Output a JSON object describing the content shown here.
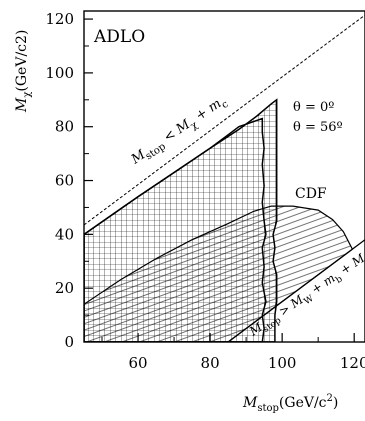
{
  "chart_data": {
    "type": "exclusion-plot",
    "title": "",
    "xlabel_main": "M",
    "xlabel_sub": "stop",
    "xlabel_unit": "(GeV/c",
    "xlabel_sup": "2",
    "xlabel_close": ")",
    "ylabel_main": "M",
    "ylabel_sub": "χ",
    "ylabel_unit": "(GeV/c2)",
    "xlim": [
      45,
      123
    ],
    "ylim": [
      0,
      123
    ],
    "xticks": [
      60,
      80,
      100,
      120
    ],
    "yticks": [
      0,
      20,
      40,
      60,
      80,
      100,
      120
    ],
    "grid": false,
    "experiment_label": "ADLO",
    "legend": {
      "placement": "top-right",
      "entries": [
        "θ = 0º",
        "θ = 56º"
      ]
    },
    "annotations": {
      "cdf": "CDF",
      "kin_upper": {
        "a": "M",
        "a_sub": "stop",
        "rel": " < M",
        "b_sub": "χ",
        "plus": " + m",
        "c_sub": "c"
      },
      "kin_lower": {
        "a": "M",
        "a_sub": "stop",
        "rel": " > M",
        "b_sub": "W",
        "plus1": " + m",
        "c_sub": "b",
        "plus2": " + M",
        "d_sub": "χ"
      }
    },
    "kinematic_lines": {
      "charm": {
        "slope": 1,
        "intercept": -1.5
      },
      "w_b": {
        "slope": 1,
        "intercept": -85
      }
    },
    "regions": {
      "adlo_theta0": [
        [
          45,
          40
        ],
        [
          60,
          54
        ],
        [
          70,
          63
        ],
        [
          80,
          72
        ],
        [
          88,
          79
        ],
        [
          93,
          84
        ],
        [
          97,
          88.5
        ],
        [
          98.5,
          90
        ],
        [
          98.5,
          45
        ],
        [
          97.5,
          40
        ],
        [
          98,
          35
        ],
        [
          97.5,
          30
        ],
        [
          98.5,
          25
        ],
        [
          98.5,
          15
        ],
        [
          98,
          10
        ],
        [
          98,
          0
        ],
        [
          85,
          0
        ],
        [
          45,
          0
        ]
      ],
      "adlo_theta56": [
        [
          45,
          40
        ],
        [
          60,
          54
        ],
        [
          70,
          63
        ],
        [
          80,
          72
        ],
        [
          85,
          77
        ],
        [
          88,
          80
        ],
        [
          94.5,
          83
        ],
        [
          94.5,
          78
        ],
        [
          95,
          72
        ],
        [
          94.5,
          66
        ],
        [
          95,
          58
        ],
        [
          94.5,
          52
        ],
        [
          95,
          45
        ],
        [
          95.5,
          40
        ],
        [
          94.5,
          35
        ],
        [
          95,
          28
        ],
        [
          94.5,
          22
        ],
        [
          95.5,
          15
        ],
        [
          94.5,
          10
        ],
        [
          95,
          5
        ],
        [
          94.5,
          0
        ],
        [
          85,
          0
        ],
        [
          45,
          0
        ]
      ],
      "cdf": [
        [
          45,
          14
        ],
        [
          55,
          23
        ],
        [
          65,
          31
        ],
        [
          75,
          38
        ],
        [
          85,
          44
        ],
        [
          92,
          48.5
        ],
        [
          97,
          50.5
        ],
        [
          103,
          50.5
        ],
        [
          110,
          49
        ],
        [
          114,
          45.5
        ],
        [
          117,
          41
        ],
        [
          119.5,
          34.5
        ],
        [
          104,
          19
        ],
        [
          100,
          15
        ],
        [
          85,
          0
        ],
        [
          45,
          0
        ]
      ]
    }
  }
}
